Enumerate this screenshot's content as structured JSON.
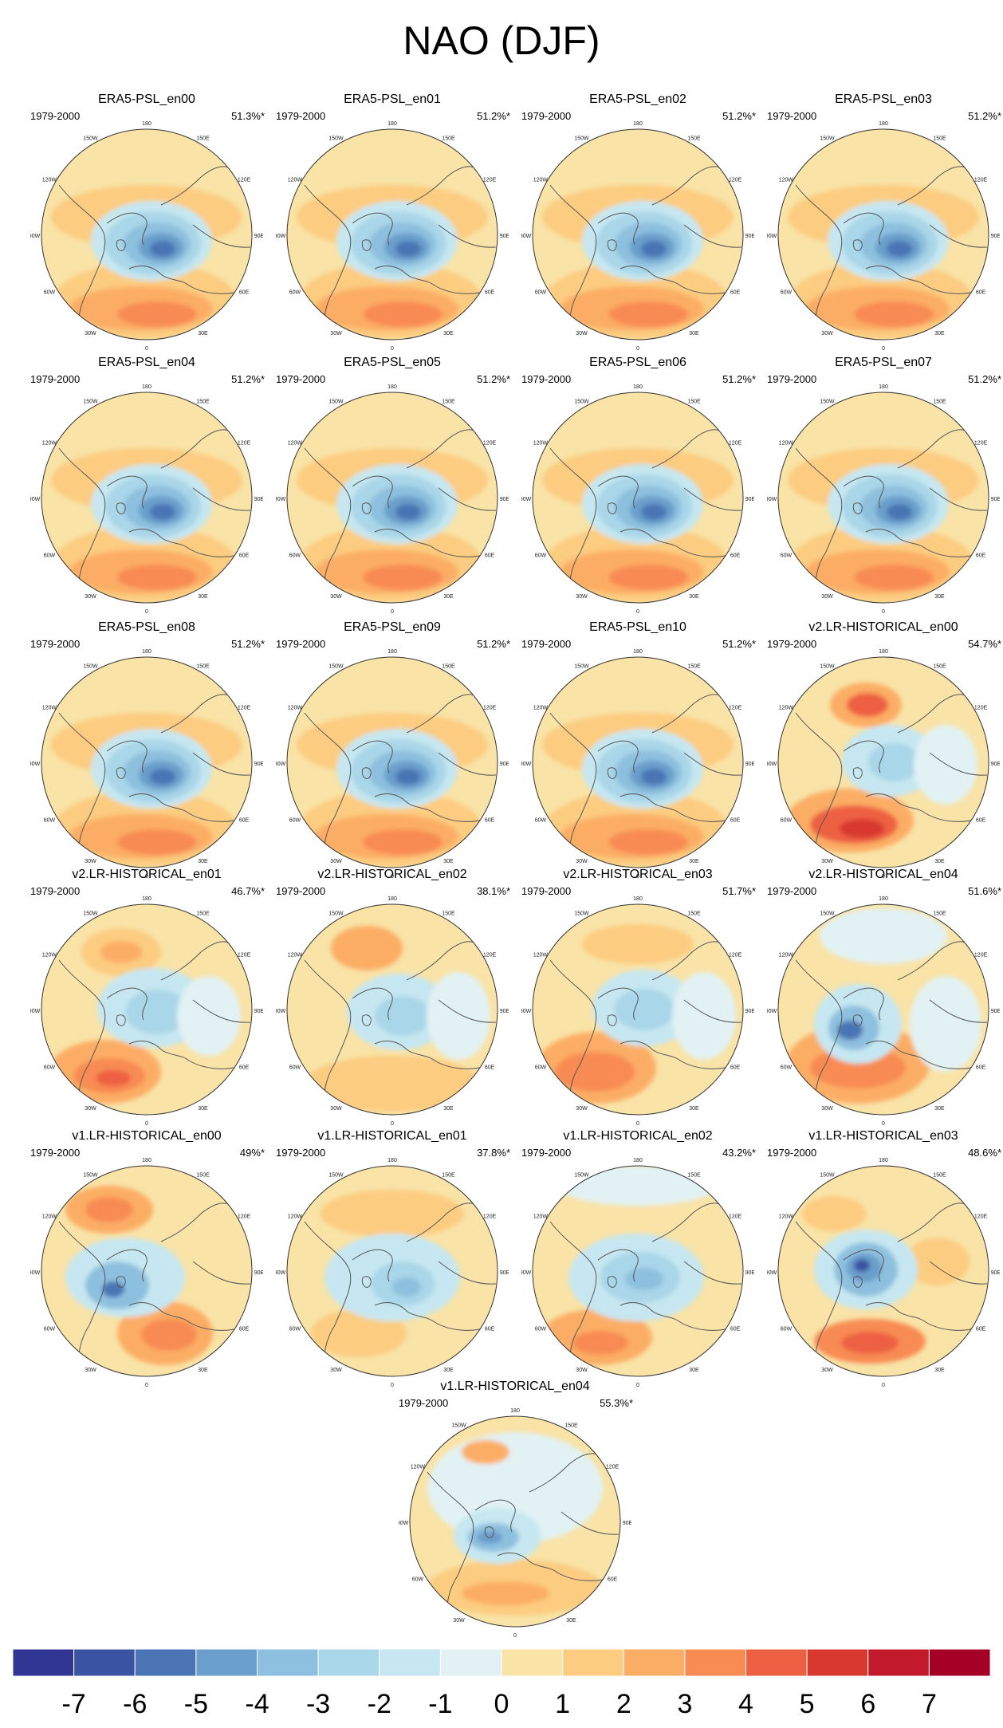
{
  "figure_title": "NAO (DJF)",
  "period_label": "1979-2000",
  "lon_labels": [
    "180",
    "150E",
    "120E",
    "90E",
    "60E",
    "30E",
    "0",
    "30W",
    "60W",
    "90W",
    "120W",
    "150W"
  ],
  "panels": [
    {
      "title": "ERA5-PSL_en00",
      "pct": "51.3%*",
      "pattern": "era5"
    },
    {
      "title": "ERA5-PSL_en01",
      "pct": "51.2%*",
      "pattern": "era5"
    },
    {
      "title": "ERA5-PSL_en02",
      "pct": "51.2%*",
      "pattern": "era5"
    },
    {
      "title": "ERA5-PSL_en03",
      "pct": "51.2%*",
      "pattern": "era5"
    },
    {
      "title": "ERA5-PSL_en04",
      "pct": "51.2%*",
      "pattern": "era5"
    },
    {
      "title": "ERA5-PSL_en05",
      "pct": "51.2%*",
      "pattern": "era5"
    },
    {
      "title": "ERA5-PSL_en06",
      "pct": "51.2%*",
      "pattern": "era5"
    },
    {
      "title": "ERA5-PSL_en07",
      "pct": "51.2%*",
      "pattern": "era5"
    },
    {
      "title": "ERA5-PSL_en08",
      "pct": "51.2%*",
      "pattern": "era5"
    },
    {
      "title": "ERA5-PSL_en09",
      "pct": "51.2%*",
      "pattern": "era5"
    },
    {
      "title": "ERA5-PSL_en10",
      "pct": "51.2%*",
      "pattern": "era5"
    },
    {
      "title": "v2.LR-HISTORICAL_en00",
      "pct": "54.7%*",
      "pattern": "v2a"
    },
    {
      "title": "v2.LR-HISTORICAL_en01",
      "pct": "46.7%*",
      "pattern": "v2b"
    },
    {
      "title": "v2.LR-HISTORICAL_en02",
      "pct": "38.1%*",
      "pattern": "v2c"
    },
    {
      "title": "v2.LR-HISTORICAL_en03",
      "pct": "51.7%*",
      "pattern": "v2d"
    },
    {
      "title": "v2.LR-HISTORICAL_en04",
      "pct": "51.6%*",
      "pattern": "v2e"
    },
    {
      "title": "v1.LR-HISTORICAL_en00",
      "pct": "49%*",
      "pattern": "v1a"
    },
    {
      "title": "v1.LR-HISTORICAL_en01",
      "pct": "37.8%*",
      "pattern": "v1b"
    },
    {
      "title": "v1.LR-HISTORICAL_en02",
      "pct": "43.2%*",
      "pattern": "v1c"
    },
    {
      "title": "v1.LR-HISTORICAL_en03",
      "pct": "48.6%*",
      "pattern": "v1d"
    },
    {
      "title": "v1.LR-HISTORICAL_en04",
      "pct": "55.3%*",
      "pattern": "v1e"
    }
  ],
  "colorbar": {
    "ticks": [
      "-7",
      "-6",
      "-5",
      "-4",
      "-3",
      "-2",
      "-1",
      "0",
      "1",
      "2",
      "3",
      "4",
      "5",
      "6",
      "7"
    ],
    "colors": [
      "#313695",
      "#3a53a3",
      "#4a74b4",
      "#6a9ecb",
      "#8dbfde",
      "#a9d6e8",
      "#c6e7f1",
      "#e2f2f4",
      "#f9e3a7",
      "#fccc80",
      "#fcad65",
      "#f88b52",
      "#ed6142",
      "#d8382e",
      "#c21a2b",
      "#a50026"
    ]
  },
  "chart_data": {
    "type": "heatmap",
    "title": "NAO (DJF)",
    "projection": "north polar stereographic",
    "period": "1979-2000",
    "colorbar_range": [
      -7,
      7
    ],
    "colorbar_step": 1,
    "panels": [
      {
        "name": "ERA5-PSL_en00",
        "explained_variance_pct": 51.3,
        "significant": true
      },
      {
        "name": "ERA5-PSL_en01",
        "explained_variance_pct": 51.2,
        "significant": true
      },
      {
        "name": "ERA5-PSL_en02",
        "explained_variance_pct": 51.2,
        "significant": true
      },
      {
        "name": "ERA5-PSL_en03",
        "explained_variance_pct": 51.2,
        "significant": true
      },
      {
        "name": "ERA5-PSL_en04",
        "explained_variance_pct": 51.2,
        "significant": true
      },
      {
        "name": "ERA5-PSL_en05",
        "explained_variance_pct": 51.2,
        "significant": true
      },
      {
        "name": "ERA5-PSL_en06",
        "explained_variance_pct": 51.2,
        "significant": true
      },
      {
        "name": "ERA5-PSL_en07",
        "explained_variance_pct": 51.2,
        "significant": true
      },
      {
        "name": "ERA5-PSL_en08",
        "explained_variance_pct": 51.2,
        "significant": true
      },
      {
        "name": "ERA5-PSL_en09",
        "explained_variance_pct": 51.2,
        "significant": true
      },
      {
        "name": "ERA5-PSL_en10",
        "explained_variance_pct": 51.2,
        "significant": true
      },
      {
        "name": "v2.LR-HISTORICAL_en00",
        "explained_variance_pct": 54.7,
        "significant": true
      },
      {
        "name": "v2.LR-HISTORICAL_en01",
        "explained_variance_pct": 46.7,
        "significant": true
      },
      {
        "name": "v2.LR-HISTORICAL_en02",
        "explained_variance_pct": 38.1,
        "significant": true
      },
      {
        "name": "v2.LR-HISTORICAL_en03",
        "explained_variance_pct": 51.7,
        "significant": true
      },
      {
        "name": "v2.LR-HISTORICAL_en04",
        "explained_variance_pct": 51.6,
        "significant": true
      },
      {
        "name": "v1.LR-HISTORICAL_en00",
        "explained_variance_pct": 49,
        "significant": true
      },
      {
        "name": "v1.LR-HISTORICAL_en01",
        "explained_variance_pct": 37.8,
        "significant": true
      },
      {
        "name": "v1.LR-HISTORICAL_en02",
        "explained_variance_pct": 43.2,
        "significant": true
      },
      {
        "name": "v1.LR-HISTORICAL_en03",
        "explained_variance_pct": 48.6,
        "significant": true
      },
      {
        "name": "v1.LR-HISTORICAL_en04",
        "explained_variance_pct": 55.3,
        "significant": true
      }
    ]
  }
}
